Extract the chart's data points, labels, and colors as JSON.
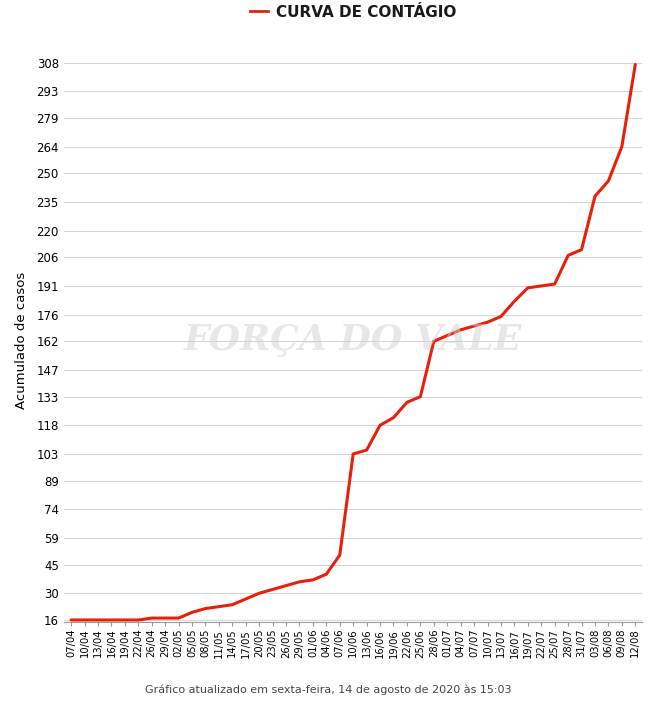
{
  "title": "CURVA DE CONTÁGIO",
  "ylabel": "Acumulado de casos",
  "footer": "Gráfico atualizado em sexta-feira, 14 de agosto de 2020 às 15:03",
  "line_color": "#e8200a",
  "background_color": "#ffffff",
  "grid_color": "#cccccc",
  "spine_color": "#999999",
  "yticks": [
    16,
    30,
    45,
    59,
    74,
    89,
    103,
    118,
    133,
    147,
    162,
    176,
    191,
    206,
    220,
    235,
    250,
    264,
    279,
    293,
    308
  ],
  "dates": [
    "07/04",
    "10/04",
    "13/04",
    "16/04",
    "19/04",
    "22/04",
    "26/04",
    "29/04",
    "02/05",
    "05/05",
    "08/05",
    "11/05",
    "14/05",
    "17/05",
    "20/05",
    "23/05",
    "26/05",
    "29/05",
    "01/06",
    "04/06",
    "07/06",
    "10/06",
    "13/06",
    "16/06",
    "19/06",
    "22/06",
    "25/06",
    "28/06",
    "01/07",
    "04/07",
    "07/07",
    "10/07",
    "13/07",
    "16/07",
    "19/07",
    "22/07",
    "25/07",
    "28/07",
    "31/07",
    "03/08",
    "06/08",
    "09/08",
    "12/08"
  ],
  "values": [
    16,
    16,
    16,
    16,
    16,
    16,
    17,
    17,
    17,
    20,
    22,
    23,
    24,
    27,
    30,
    32,
    34,
    36,
    37,
    40,
    50,
    103,
    105,
    118,
    122,
    130,
    133,
    162,
    165,
    168,
    170,
    172,
    175,
    183,
    190,
    191,
    192,
    207,
    210,
    238,
    246,
    264,
    307
  ],
  "watermark_text": "FORÇA DO VALE",
  "watermark_color": "#d0d0d0",
  "watermark_alpha": 0.5,
  "title_fontsize": 11,
  "ylabel_fontsize": 9.5,
  "ytick_fontsize": 8.5,
  "xtick_fontsize": 7.2,
  "footer_fontsize": 8,
  "legend_dash_color": "#e8200a",
  "legend_text_color": "#1a1a1a"
}
